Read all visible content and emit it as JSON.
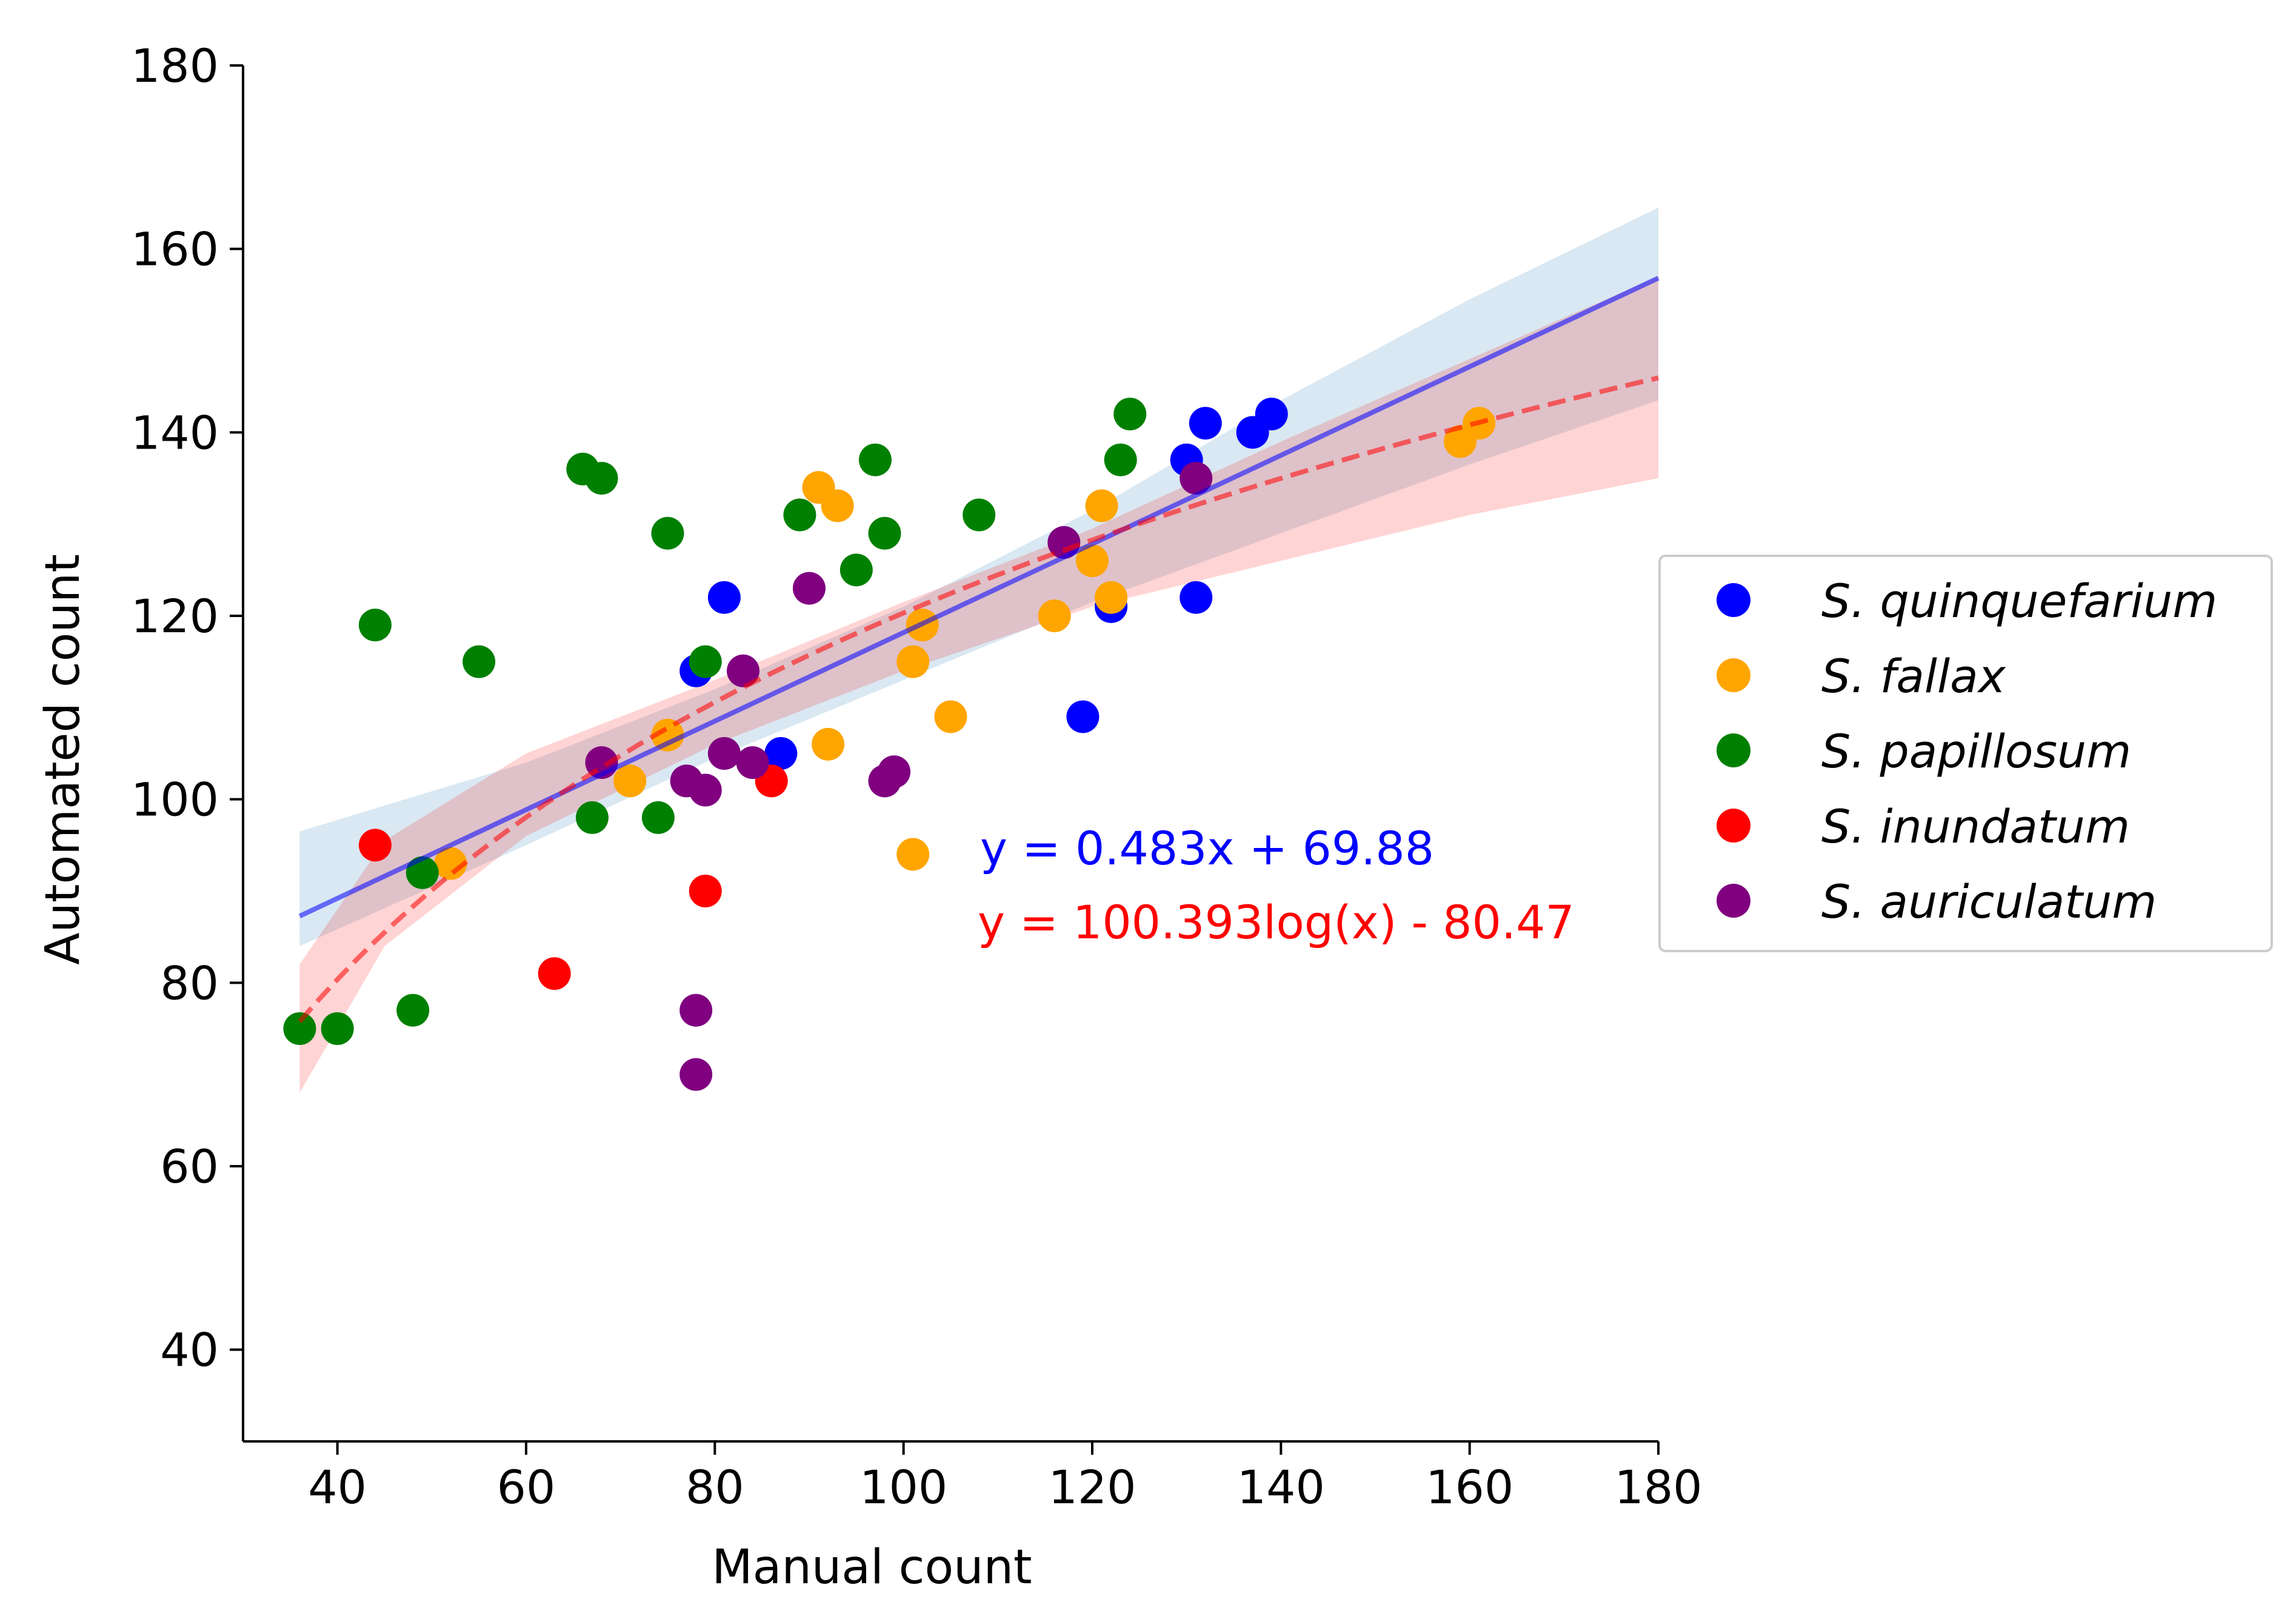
{
  "chart_data": {
    "type": "scatter",
    "title": "",
    "xlabel": "Manual count",
    "ylabel": "Automated count",
    "xlim": [
      30,
      180
    ],
    "ylim": [
      30,
      180
    ],
    "xticks": [
      "40",
      "60",
      "80",
      "100",
      "120",
      "140",
      "160",
      "180"
    ],
    "yticks": [
      "40",
      "60",
      "80",
      "100",
      "120",
      "140",
      "160",
      "180"
    ],
    "grid": false,
    "legend_position": "center-right",
    "legend": [
      "S. quinquefarium",
      "S. fallax",
      "S. papillosum",
      "S. inundatum",
      "S. auriculatum"
    ],
    "series": [
      {
        "name": "S. quinquefarium",
        "color": "#0000ff",
        "points": [
          [
            78,
            114
          ],
          [
            81,
            122
          ],
          [
            87,
            105
          ],
          [
            119,
            109
          ],
          [
            122,
            121
          ],
          [
            130,
            137
          ],
          [
            131,
            122
          ],
          [
            132,
            141
          ],
          [
            137,
            140
          ],
          [
            139,
            142
          ]
        ]
      },
      {
        "name": "S. fallax",
        "color": "#ffa500",
        "points": [
          [
            52,
            93
          ],
          [
            71,
            102
          ],
          [
            75,
            107
          ],
          [
            91,
            134
          ],
          [
            92,
            106
          ],
          [
            93,
            132
          ],
          [
            101,
            115
          ],
          [
            101,
            94
          ],
          [
            102,
            119
          ],
          [
            105,
            109
          ],
          [
            116,
            120
          ],
          [
            120,
            126
          ],
          [
            121,
            132
          ],
          [
            122,
            122
          ],
          [
            159,
            139
          ],
          [
            161,
            141
          ]
        ]
      },
      {
        "name": "S. papillosum",
        "color": "#008000",
        "points": [
          [
            36,
            75
          ],
          [
            40,
            75
          ],
          [
            44,
            119
          ],
          [
            48,
            77
          ],
          [
            49,
            92
          ],
          [
            55,
            115
          ],
          [
            66,
            136
          ],
          [
            67,
            98
          ],
          [
            68,
            135
          ],
          [
            74,
            98
          ],
          [
            75,
            129
          ],
          [
            79,
            115
          ],
          [
            89,
            131
          ],
          [
            95,
            125
          ],
          [
            97,
            137
          ],
          [
            98,
            129
          ],
          [
            108,
            131
          ],
          [
            123,
            137
          ],
          [
            124,
            142
          ]
        ]
      },
      {
        "name": "S. inundatum",
        "color": "#ff0000",
        "points": [
          [
            44,
            95
          ],
          [
            63,
            81
          ],
          [
            79,
            90
          ],
          [
            86,
            102
          ]
        ]
      },
      {
        "name": "S. auriculatum",
        "color": "#800080",
        "points": [
          [
            68,
            104
          ],
          [
            77,
            102
          ],
          [
            78,
            77
          ],
          [
            78,
            70
          ],
          [
            79,
            101
          ],
          [
            81,
            105
          ],
          [
            83,
            114
          ],
          [
            84,
            104
          ],
          [
            90,
            123
          ],
          [
            98,
            102
          ],
          [
            99,
            103
          ],
          [
            117,
            128
          ],
          [
            131,
            135
          ]
        ]
      }
    ],
    "fits": [
      {
        "name": "linear",
        "equation": "y = 0.483x + 69.88",
        "slope": 0.483,
        "intercept": 69.88,
        "x_range": [
          36,
          180
        ],
        "color": "#0000ff",
        "ci_band": [
          [
            36,
            84.0,
            96.5
          ],
          [
            60,
            95.0,
            104.0
          ],
          [
            80,
            104.5,
            112.0
          ],
          [
            100,
            113.0,
            121.0
          ],
          [
            120,
            121.5,
            131.5
          ],
          [
            140,
            129.0,
            143.5
          ],
          [
            160,
            136.5,
            154.5
          ],
          [
            180,
            143.5,
            164.5
          ]
        ]
      },
      {
        "name": "logarithmic",
        "equation": "y = 100.393log(x) - 80.47",
        "a": 100.393,
        "b": -80.47,
        "x_range": [
          36,
          180
        ],
        "color": "#ff0000",
        "ci_band": [
          [
            36,
            68.0,
            82.0
          ],
          [
            45,
            84.0,
            95.5
          ],
          [
            60,
            96.0,
            105.0
          ],
          [
            80,
            106.0,
            113.0
          ],
          [
            100,
            114.0,
            121.5
          ],
          [
            120,
            121.0,
            129.5
          ],
          [
            140,
            126.0,
            139.0
          ],
          [
            160,
            131.0,
            148.0
          ],
          [
            180,
            135.0,
            157.0
          ]
        ]
      }
    ]
  }
}
